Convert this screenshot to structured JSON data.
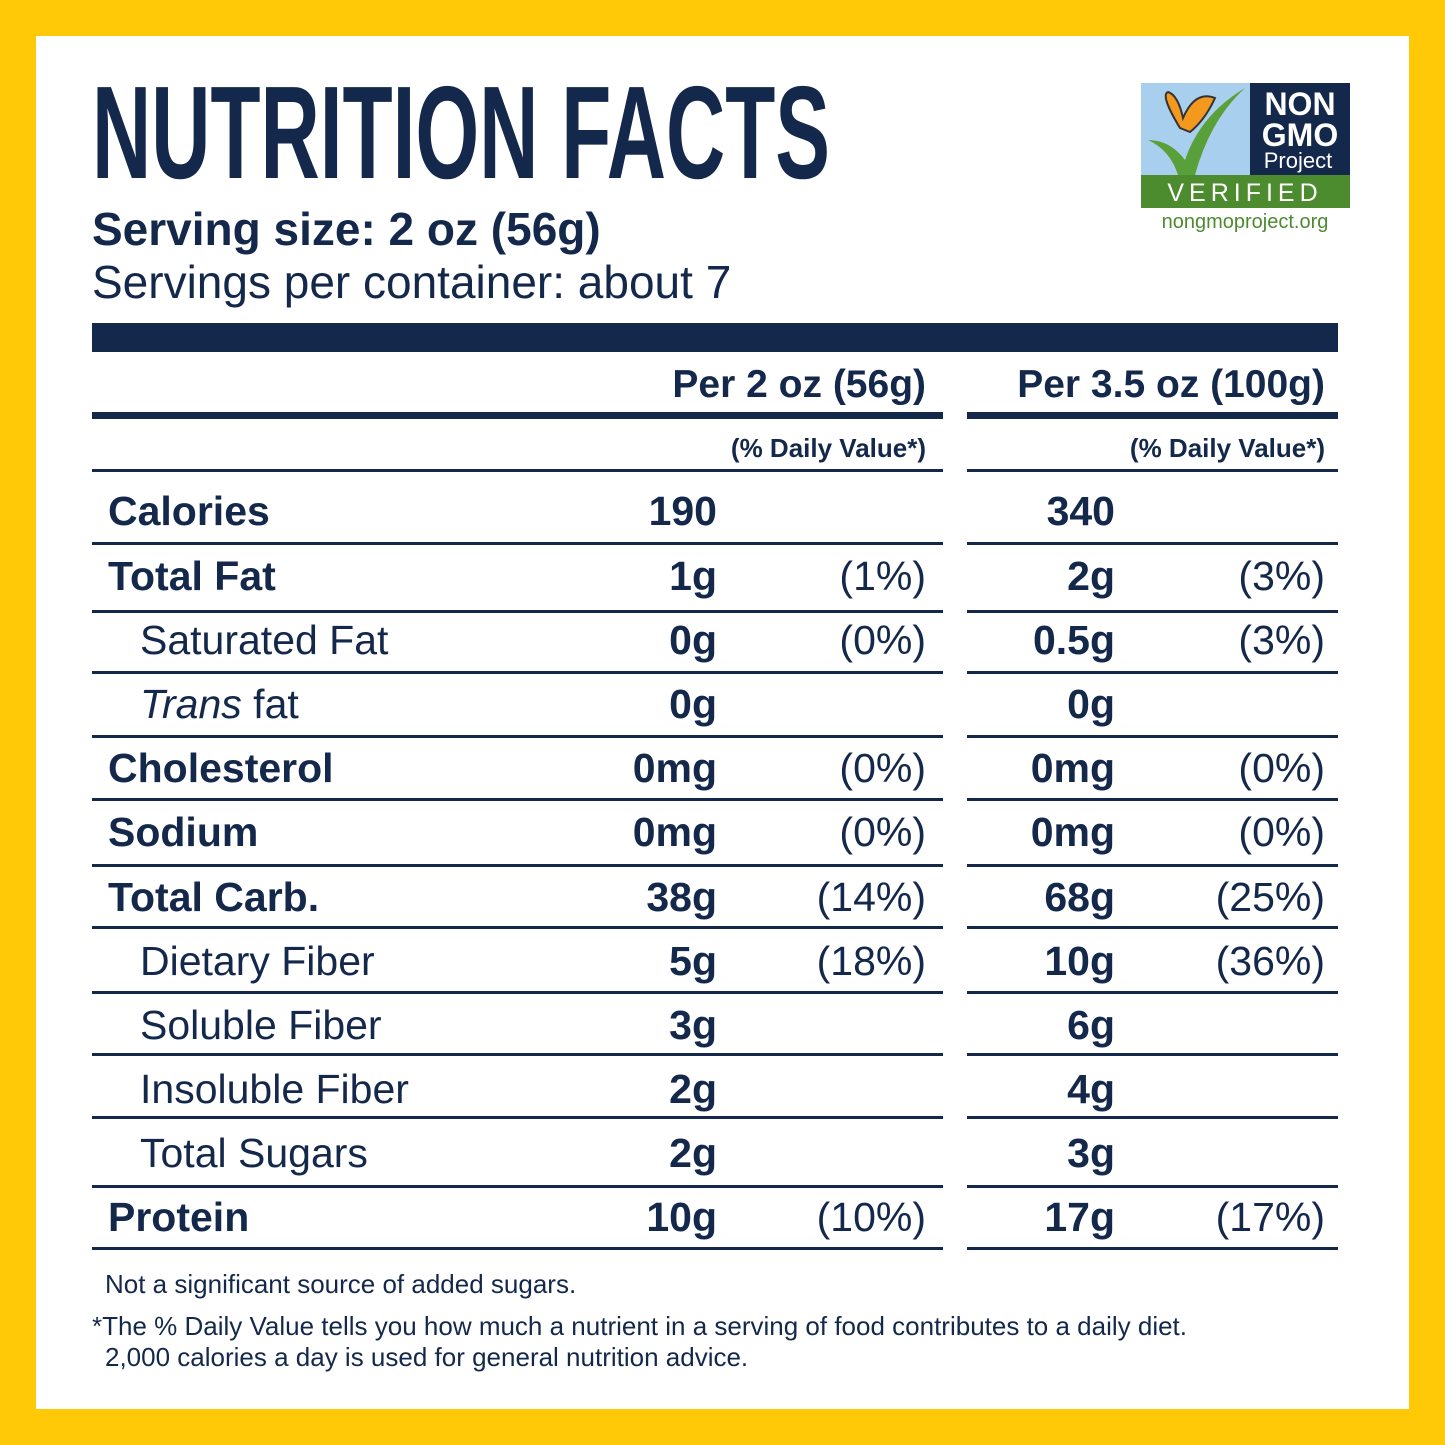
{
  "header": {
    "title": "NUTRITION FACTS",
    "serving_size": "Serving size: 2 oz (56g)",
    "servings_per_container": "Servings per container: about 7"
  },
  "badge": {
    "line1": "NON",
    "line2": "GMO",
    "line3": "Project",
    "verified": "VERIFIED",
    "url": "nongmoproject.org"
  },
  "table": {
    "columns": [
      {
        "heading": "Per 2 oz (56g)",
        "subheading": "(% Daily Value*)"
      },
      {
        "heading": "Per 3.5 oz (100g)",
        "subheading": "(% Daily Value*)"
      }
    ],
    "rows": [
      {
        "label": "Calories",
        "bold": true,
        "values": [
          {
            "amount": "190"
          },
          {
            "amount": "340"
          }
        ]
      },
      {
        "label": "Total Fat",
        "bold": true,
        "values": [
          {
            "amount": "1g",
            "percent": "(1%)"
          },
          {
            "amount": "2g",
            "percent": "(3%)"
          }
        ]
      },
      {
        "label": "Saturated Fat",
        "bold": false,
        "values": [
          {
            "amount": "0g",
            "percent": "(0%)"
          },
          {
            "amount": "0.5g",
            "percent": "(3%)"
          }
        ]
      },
      {
        "label_italic": "Trans",
        "label": "fat",
        "bold": false,
        "values": [
          {
            "amount": "0g"
          },
          {
            "amount": "0g"
          }
        ]
      },
      {
        "label": "Cholesterol",
        "bold": true,
        "values": [
          {
            "amount": "0mg",
            "percent": "(0%)"
          },
          {
            "amount": "0mg",
            "percent": "(0%)"
          }
        ]
      },
      {
        "label": "Sodium",
        "bold": true,
        "values": [
          {
            "amount": "0mg",
            "percent": "(0%)"
          },
          {
            "amount": "0mg",
            "percent": "(0%)"
          }
        ]
      },
      {
        "label": "Total Carb.",
        "bold": true,
        "values": [
          {
            "amount": "38g",
            "percent": "(14%)"
          },
          {
            "amount": "68g",
            "percent": "(25%)"
          }
        ]
      },
      {
        "label": "Dietary Fiber",
        "bold": false,
        "values": [
          {
            "amount": "5g",
            "percent": "(18%)"
          },
          {
            "amount": "10g",
            "percent": "(36%)"
          }
        ]
      },
      {
        "label": "Soluble Fiber",
        "bold": false,
        "values": [
          {
            "amount": "3g"
          },
          {
            "amount": "6g"
          }
        ]
      },
      {
        "label": "Insoluble Fiber",
        "bold": false,
        "values": [
          {
            "amount": "2g"
          },
          {
            "amount": "4g"
          }
        ]
      },
      {
        "label": "Total Sugars",
        "bold": false,
        "values": [
          {
            "amount": "2g"
          },
          {
            "amount": "3g"
          }
        ]
      },
      {
        "label": "Protein",
        "bold": true,
        "values": [
          {
            "amount": "10g",
            "percent": "(10%)"
          },
          {
            "amount": "17g",
            "percent": "(17%)"
          }
        ]
      }
    ]
  },
  "footnotes": [
    "Not a significant source of added sugars.",
    "*The % Daily Value tells you how much a nutrient in a serving of food contributes to a daily diet.",
    "2,000 calories a day is used for general nutrition advice."
  ]
}
